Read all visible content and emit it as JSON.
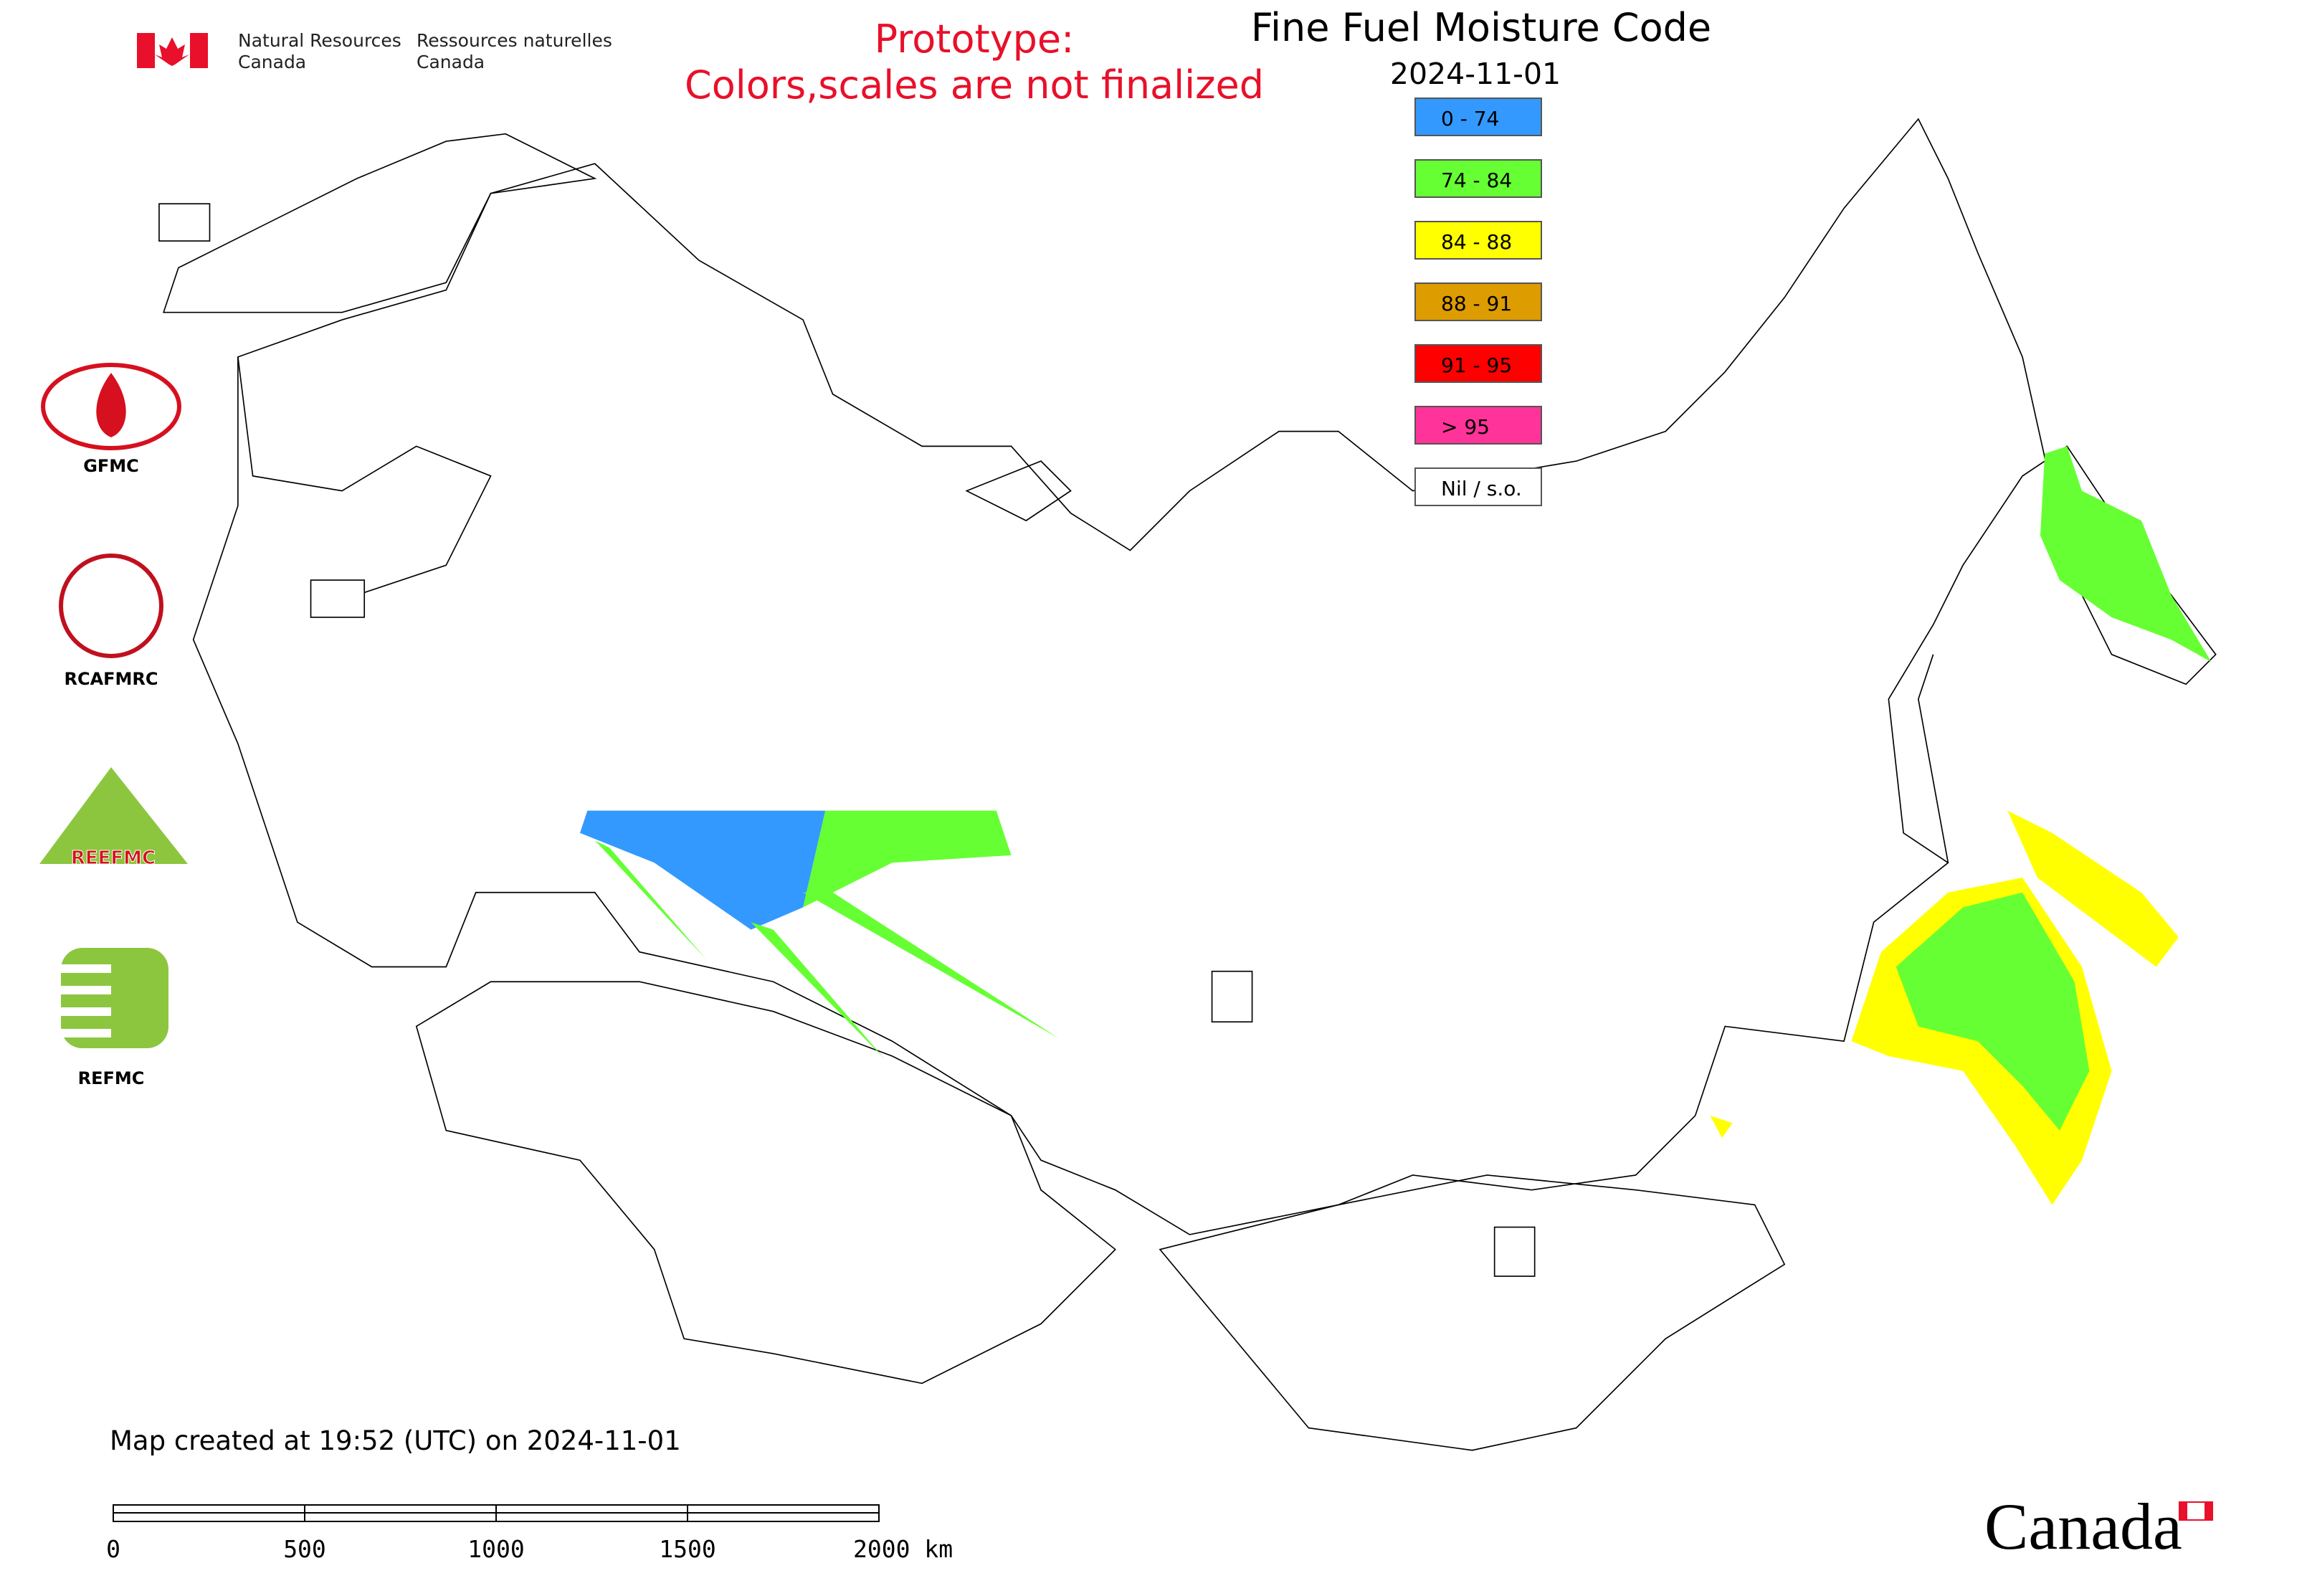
{
  "header": {
    "agency_en": [
      "Natural Resources",
      "Canada"
    ],
    "agency_fr": [
      "Ressources naturelles",
      "Canada"
    ]
  },
  "notice": [
    "Prototype:",
    "Colors,scales are not finalized"
  ],
  "title": "Fine Fuel Moisture Code",
  "date": "2024-11-01",
  "legend": [
    {
      "label": "0 - 74",
      "color": "#3399ff"
    },
    {
      "label": "74 - 84",
      "color": "#66ff33"
    },
    {
      "label": "84 - 88",
      "color": "#ffff00"
    },
    {
      "label": "88 - 91",
      "color": "#dd9c00"
    },
    {
      "label": "91 - 95",
      "color": "#ff0000"
    },
    {
      "label": "> 95",
      "color": "#ff3399"
    },
    {
      "label": "Nil / s.o.",
      "color": "#ffffff"
    }
  ],
  "logos": [
    "GFMC",
    "RCAFMRC",
    "REFMC"
  ],
  "logo_text": "REEFMC",
  "footer": "Map created at 19:52 (UTC) on 2024-11-01",
  "scale_bar": {
    "labels": [
      "0",
      "500",
      "1000",
      "1500",
      "2000 km"
    ]
  },
  "wordmark": "Canada"
}
